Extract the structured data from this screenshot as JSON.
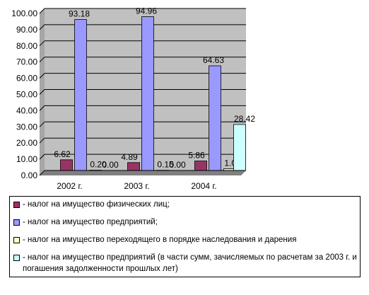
{
  "chart_data": {
    "type": "bar",
    "categories": [
      "2002 г.",
      "2003 г.",
      "2004 г."
    ],
    "ylim": [
      0,
      100
    ],
    "yticks": [
      "0.00",
      "10.00",
      "20.00",
      "30.00",
      "40.00",
      "50.00",
      "60.00",
      "70.00",
      "80.00",
      "90.00",
      "100.00"
    ],
    "grid": true,
    "legend_position": "bottom",
    "series": [
      {
        "name": "- налог на имущество физических лиц;",
        "values": [
          6.62,
          4.89,
          5.86
        ],
        "labels": [
          "6.62",
          "4.89",
          "5.86"
        ],
        "color": "#993366"
      },
      {
        "name": "- налог на имущество предприятий;",
        "values": [
          93.18,
          94.96,
          64.63
        ],
        "labels": [
          "93.18",
          "94.96",
          "64.63"
        ],
        "color": "#9999ff"
      },
      {
        "name": "- налог на имущество переходящего в порядке наследования и дарения",
        "values": [
          0.2,
          0.15,
          1.08
        ],
        "labels": [
          "0.20",
          "0.15",
          "1.08"
        ],
        "color": "#ffffcc"
      },
      {
        "name": "- налог на имущество предприятий (в части сумм, зачисляемых по расчетам за 2003 г. и погашения задолженности прошлых лет)",
        "values": [
          0.0,
          0.0,
          28.42
        ],
        "labels": [
          "0.00",
          "0.00",
          "28.42"
        ],
        "color": "#ccffff"
      }
    ],
    "colors": {
      "plot_background": "#c0c0c0",
      "gridline": "#000000"
    }
  }
}
